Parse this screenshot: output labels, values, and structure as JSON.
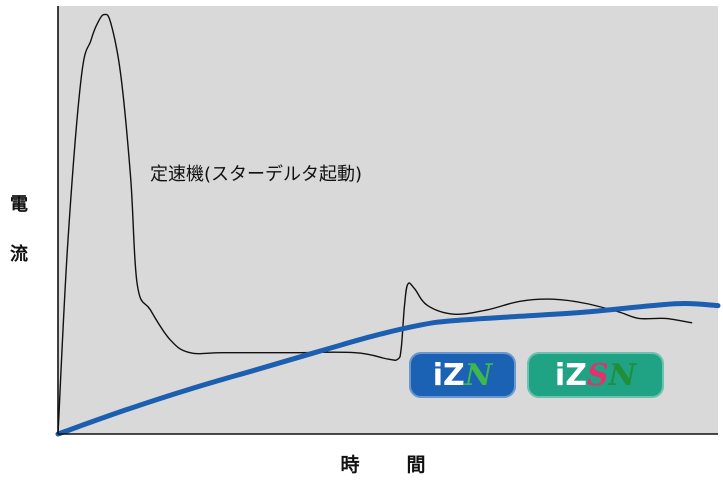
{
  "chart_data": {
    "type": "line",
    "title": "",
    "xlabel": "時　間",
    "ylabel": "電流",
    "xlim": [
      0,
      100
    ],
    "ylim": [
      0,
      100
    ],
    "grid": false,
    "series": [
      {
        "name": "定速機(スターデルタ起動)",
        "color": "#111111",
        "x": [
          0,
          1.5,
          3.5,
          5,
          6,
          7,
          8,
          9.5,
          11,
          12,
          14,
          17,
          20,
          25,
          35,
          45,
          50,
          51.5,
          52,
          52.5,
          53,
          54,
          56,
          60,
          65,
          70,
          75,
          80,
          85,
          88,
          92,
          96
        ],
        "y": [
          0,
          45,
          83,
          92,
          96,
          98,
          96,
          84,
          60,
          35,
          29,
          22,
          19,
          19,
          19,
          19,
          17.5,
          17.5,
          20,
          30,
          35,
          34,
          30,
          28,
          29,
          31,
          31.5,
          30.5,
          28.5,
          27,
          27,
          26
        ]
      },
      {
        "name": "",
        "color": "#1c5fb0",
        "x": [
          0,
          10,
          20,
          30,
          40,
          48,
          55,
          60,
          70,
          80,
          90,
          95,
          100
        ],
        "y": [
          0,
          5.5,
          10.5,
          15,
          19.5,
          23,
          25.5,
          26.5,
          27.5,
          28.5,
          30,
          30.5,
          30
        ]
      }
    ]
  },
  "labels": {
    "y_char_1": "電",
    "y_char_2": "流",
    "x_axis": "時　間",
    "annotation": "定速機(スターデルタ起動)"
  },
  "badges": {
    "izn": {
      "iz": "iZ",
      "n": "N"
    },
    "izsn": {
      "iz": "iZ",
      "s": "S",
      "n": "N"
    }
  },
  "colors": {
    "plot_background": "#d9d9d9",
    "axis": "#111111",
    "badge_izn_bg": "#1b62b4",
    "badge_izsn_bg": "#20a284"
  }
}
